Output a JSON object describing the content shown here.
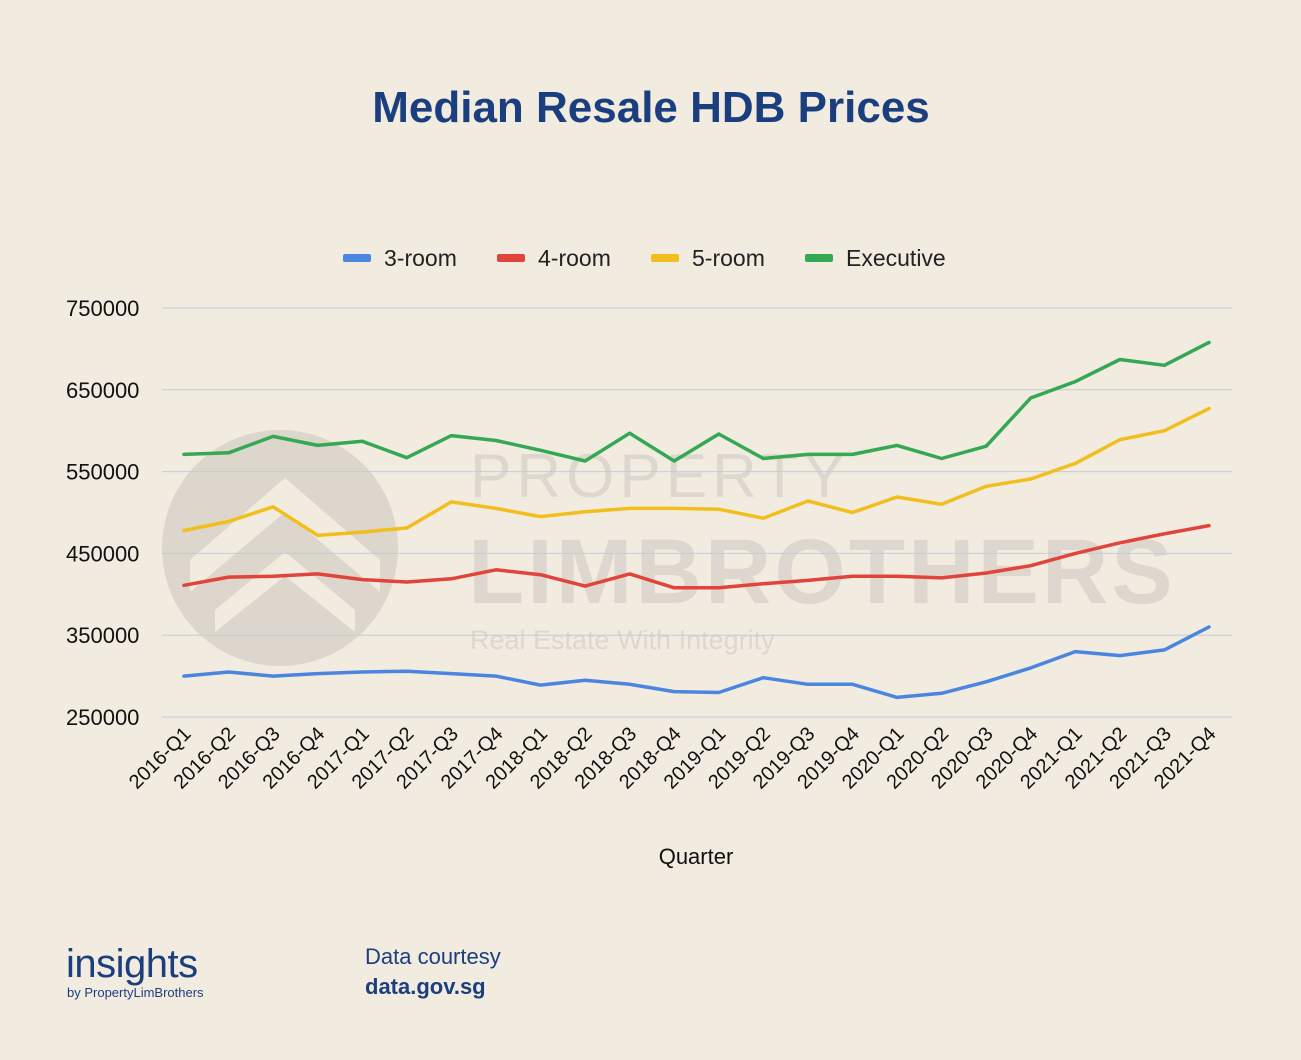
{
  "chart_data": {
    "type": "line",
    "title": "Median Resale HDB Prices",
    "xlabel": "Quarter",
    "ylabel": "",
    "ylim": [
      250000,
      750000
    ],
    "yticks": [
      "750000",
      "650000",
      "550000",
      "450000",
      "350000",
      "250000"
    ],
    "ytick_values": [
      750000,
      650000,
      550000,
      450000,
      350000,
      250000
    ],
    "grid": true,
    "legend_position": "top",
    "categories": [
      "2016-Q1",
      "2016-Q2",
      "2016-Q3",
      "2016-Q4",
      "2017-Q1",
      "2017-Q2",
      "2017-Q3",
      "2017-Q4",
      "2018-Q1",
      "2018-Q2",
      "2018-Q3",
      "2018-Q4",
      "2019-Q1",
      "2019-Q2",
      "2019-Q3",
      "2019-Q4",
      "2020-Q1",
      "2020-Q2",
      "2020-Q3",
      "2020-Q4",
      "2021-Q1",
      "2021-Q2",
      "2021-Q3",
      "2021-Q4"
    ],
    "series": [
      {
        "name": "3-room",
        "color": "#4a86e0",
        "values": [
          300000,
          305000,
          300000,
          303000,
          305000,
          306000,
          303000,
          300000,
          289000,
          295000,
          290000,
          281000,
          280000,
          298000,
          290000,
          290000,
          274000,
          279000,
          293000,
          310000,
          330000,
          325000,
          332000,
          360000
        ]
      },
      {
        "name": "4-room",
        "color": "#e0443a",
        "values": [
          411000,
          421000,
          422000,
          425000,
          418000,
          415000,
          419000,
          430000,
          424000,
          410000,
          425000,
          408000,
          408000,
          413000,
          417000,
          422000,
          422000,
          420000,
          426000,
          435000,
          450000,
          463000,
          474000,
          484000
        ]
      },
      {
        "name": "5-room",
        "color": "#f2be1d",
        "values": [
          478000,
          489000,
          507000,
          472000,
          476000,
          481000,
          513000,
          505000,
          495000,
          501000,
          505000,
          505000,
          504000,
          493000,
          514000,
          500000,
          519000,
          510000,
          532000,
          541000,
          560000,
          589000,
          600000,
          627000
        ]
      },
      {
        "name": "Executive",
        "color": "#34a853",
        "values": [
          571000,
          573000,
          593000,
          582000,
          587000,
          567000,
          594000,
          588000,
          576000,
          563000,
          597000,
          563000,
          596000,
          566000,
          571000,
          571000,
          582000,
          566000,
          581000,
          640000,
          660000,
          687000,
          680000,
          708000
        ]
      }
    ]
  },
  "watermark": {
    "line1": "PROPERTY",
    "line2": "LIMBROTHERS",
    "tagline": "Real Estate With Integrity"
  },
  "footer": {
    "brand": "insights",
    "brand_sub": "by PropertyLimBrothers",
    "courtesy": "Data courtesy",
    "source": "data.gov.sg"
  }
}
